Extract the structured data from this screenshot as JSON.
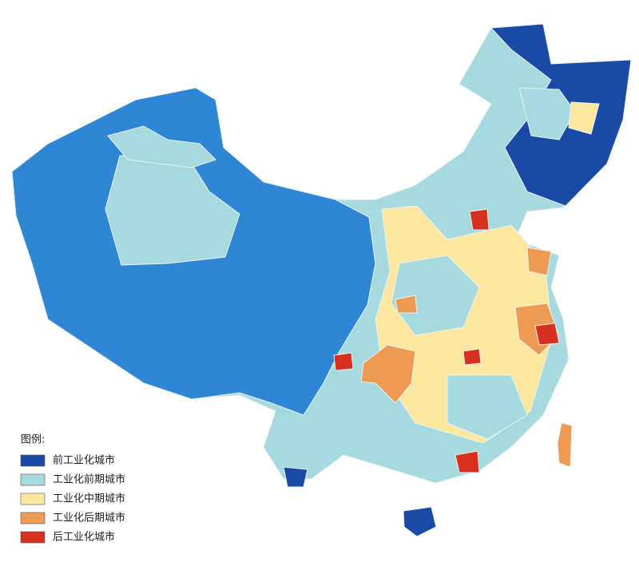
{
  "legend": {
    "title": "图例:",
    "items": [
      {
        "label": "前工业化城市",
        "color": "#1b4aa6"
      },
      {
        "label": "工业化前期城市",
        "color": "#a6dade"
      },
      {
        "label": "工业化中期城市",
        "color": "#fbe7a0"
      },
      {
        "label": "工业化后期城市",
        "color": "#ef9a52"
      },
      {
        "label": "后工业化城市",
        "color": "#d8301e"
      }
    ]
  }
}
